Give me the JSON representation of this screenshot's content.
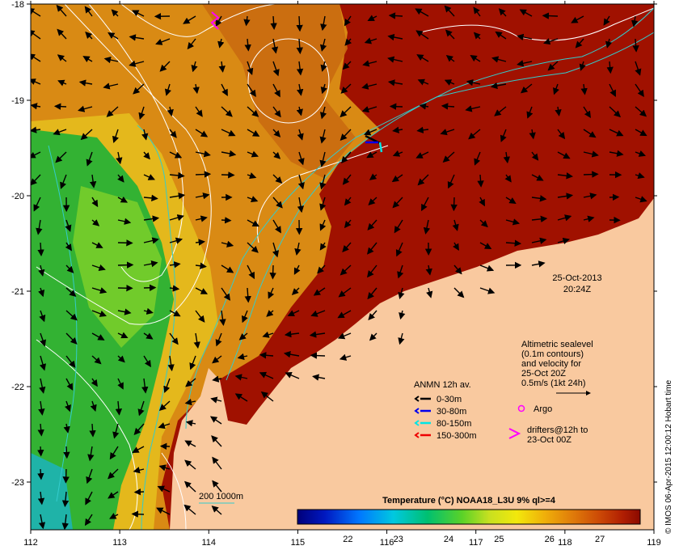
{
  "map": {
    "x_ticks": [
      "112",
      "113",
      "114",
      "115",
      "116",
      "117",
      "118",
      "119"
    ],
    "y_ticks": [
      "-18",
      "-19",
      "-20",
      "-21",
      "-22",
      "-23"
    ],
    "date": "25-Oct-2013",
    "time": "20:24Z",
    "credit": "© IMOS 06-Apr-2015 12:00:12 Hobart time",
    "colors": {
      "land": "#f9c99f",
      "ocean_warm": "#a01100",
      "ocean_orange": "#d98a14",
      "ocean_green": "#33b233",
      "isobath_line": "#33cccc",
      "contour_line": "#ffffff"
    }
  },
  "legend": {
    "altimetry_lines": [
      "Altimetric sealevel",
      "(0.1m contours)",
      "and velocity for",
      "25-Oct 20Z",
      "0.5m/s (1kt 24h)"
    ],
    "anmn_title": "ANMN 12h av.",
    "depth_items": [
      {
        "label": "0-30m",
        "color": "#000000"
      },
      {
        "label": "30-80m",
        "color": "#0000ee"
      },
      {
        "label": "80-150m",
        "color": "#00e5e5"
      },
      {
        "label": "150-300m",
        "color": "#ee0000"
      }
    ],
    "argo_label": "Argo",
    "argo_color": "#ff00ff",
    "drifters_lines": [
      "drifters@12h to",
      "23-Oct 00Z"
    ],
    "isobath_label": "200  1000m"
  },
  "colorbar": {
    "title": "Temperature (°C) NOAA18_L3U 9% ql>=4",
    "tick_labels": [
      "22",
      "23",
      "24",
      "25",
      "26",
      "27"
    ],
    "range": [
      21.0,
      27.8
    ]
  }
}
